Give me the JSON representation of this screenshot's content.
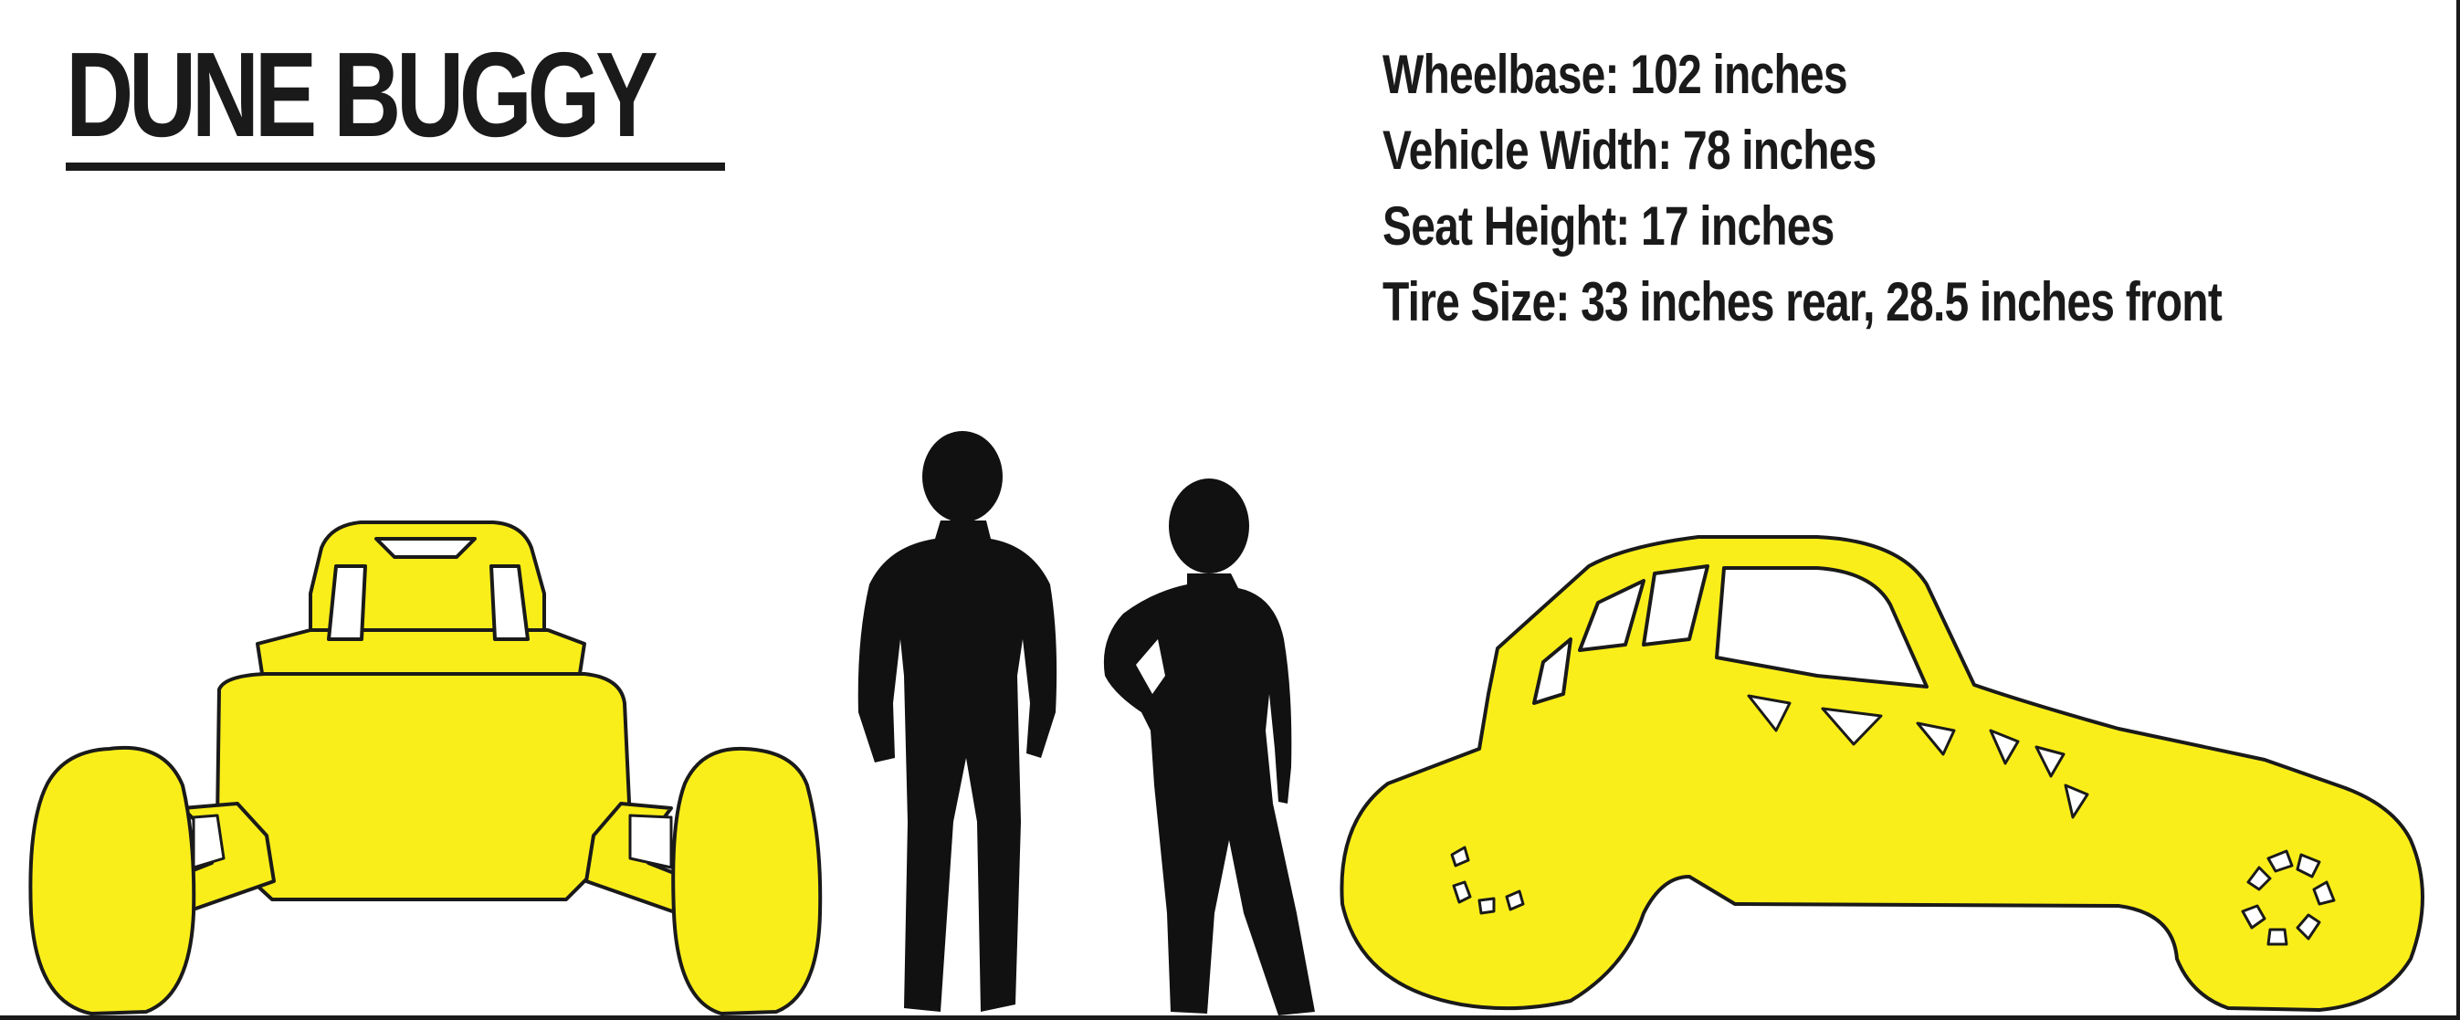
{
  "title": "DUNE BUGGY",
  "specs": [
    "Wheelbase: 102 inches",
    "Vehicle Width: 78 inches",
    "Seat Height: 17 inches",
    "Tire Size: 33 inches rear, 28.5 inches front"
  ],
  "colors": {
    "vehicle_fill": "#FAEE1A",
    "outline": "#1a1a1a",
    "silhouette": "#111111",
    "background": "#FFFFFF"
  }
}
